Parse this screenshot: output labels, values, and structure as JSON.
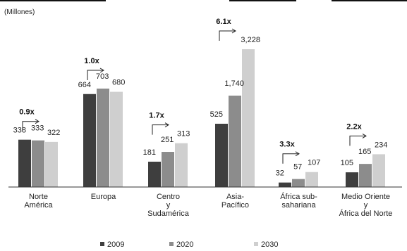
{
  "chart_data": {
    "type": "bar",
    "unit_label": "(Millones)",
    "categories": [
      [
        "Norte",
        "América"
      ],
      [
        "Europa"
      ],
      [
        "Centro",
        "y",
        "Sudamérica"
      ],
      [
        "Asia-",
        "Pacífico"
      ],
      [
        "África sub-",
        "sahariana"
      ],
      [
        "Medio Oriente",
        "y",
        "África del Norte"
      ]
    ],
    "series": [
      {
        "name": "2009",
        "values": [
          338,
          664,
          181,
          525,
          32,
          105
        ]
      },
      {
        "name": "2020",
        "values": [
          333,
          703,
          251,
          1740,
          57,
          165
        ]
      },
      {
        "name": "2030",
        "values": [
          322,
          680,
          313,
          3228,
          107,
          234
        ]
      }
    ],
    "growth": [
      "0.9x",
      "1.0x",
      "1.7x",
      "6.1x",
      "3.3x",
      "2.2x"
    ],
    "legend_position": "bottom",
    "grid": false
  },
  "colors": {
    "series": [
      "#3e3e3e",
      "#8c8c8c",
      "#cfcfcf"
    ],
    "text": "#222222",
    "axis": "#333333"
  }
}
